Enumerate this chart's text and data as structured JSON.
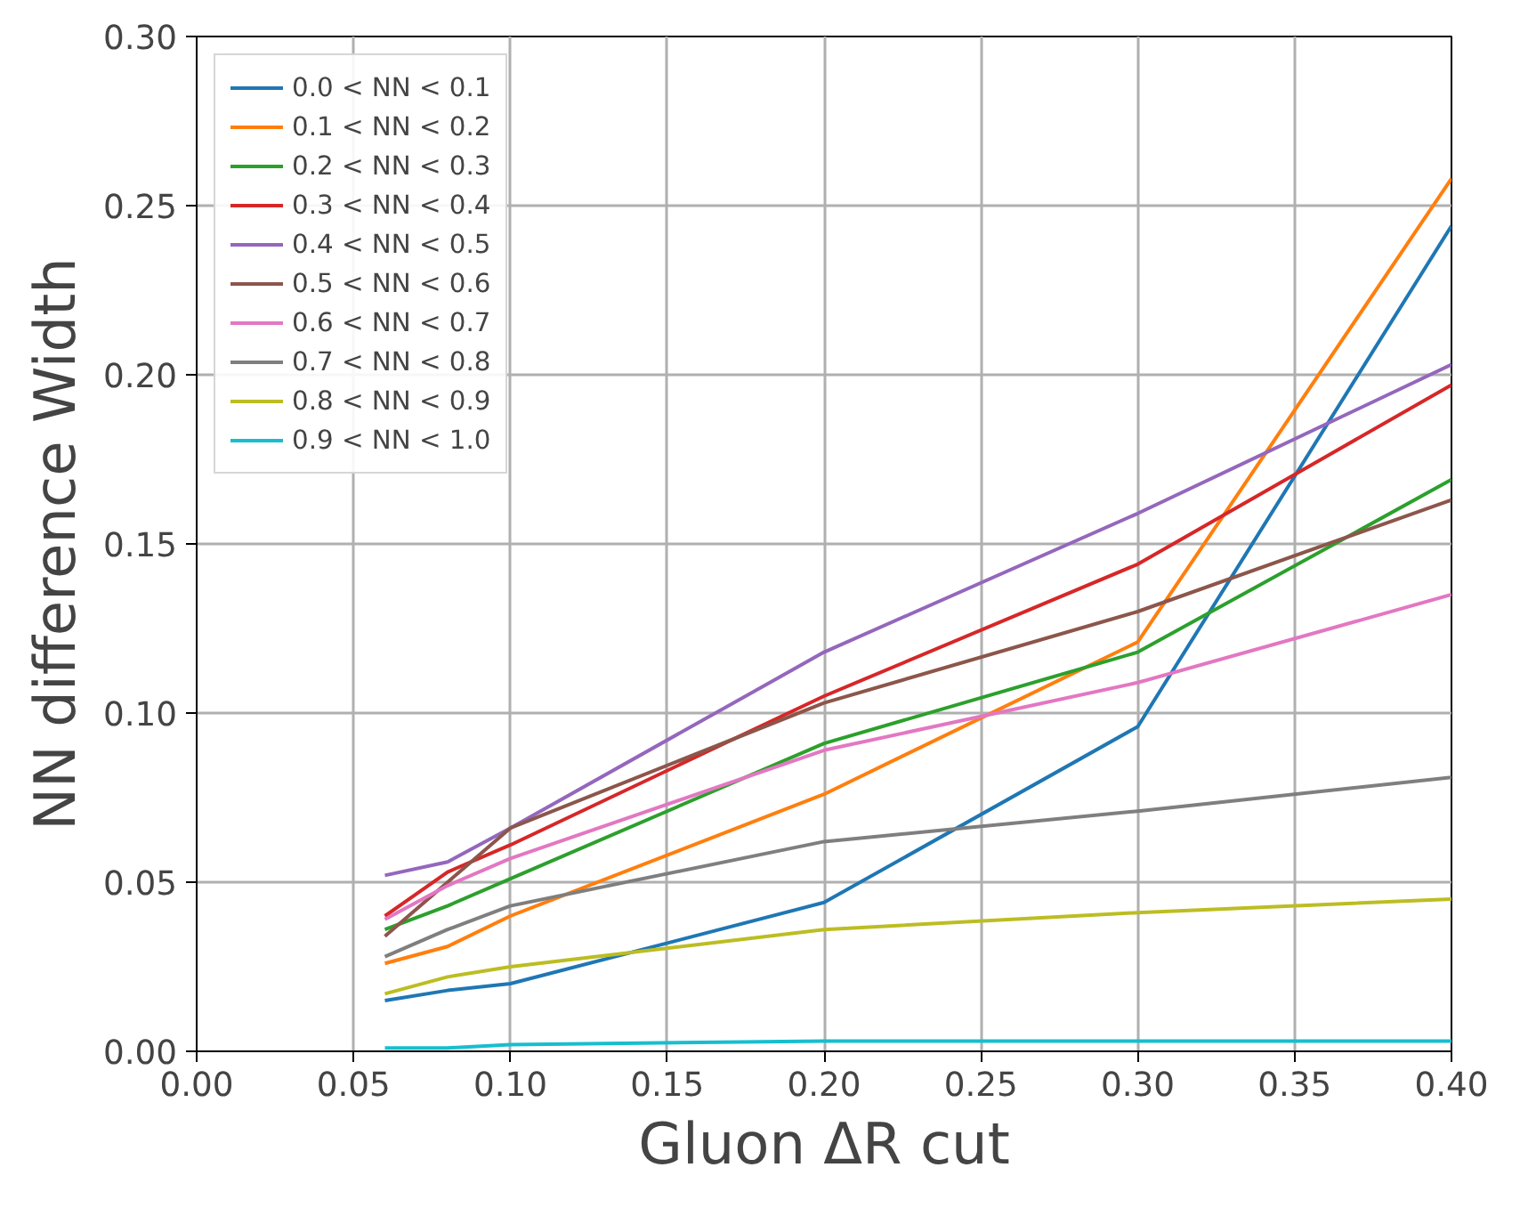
{
  "chart_data": {
    "type": "line",
    "xlabel": "Gluon ΔR cut",
    "ylabel": "NN difference Width",
    "x": [
      0.06,
      0.08,
      0.1,
      0.2,
      0.3,
      0.4
    ],
    "series": [
      {
        "name": "0.0 < NN < 0.1",
        "color": "#1f77b4",
        "values": [
          0.015,
          0.018,
          0.02,
          0.044,
          0.096,
          0.244
        ]
      },
      {
        "name": "0.1 < NN < 0.2",
        "color": "#ff7f0e",
        "values": [
          0.026,
          0.031,
          0.04,
          0.076,
          0.121,
          0.258
        ]
      },
      {
        "name": "0.2 < NN < 0.3",
        "color": "#2ca02c",
        "values": [
          0.036,
          0.043,
          0.051,
          0.091,
          0.118,
          0.169
        ]
      },
      {
        "name": "0.3 < NN < 0.4",
        "color": "#d62728",
        "values": [
          0.04,
          0.053,
          0.061,
          0.105,
          0.144,
          0.197
        ]
      },
      {
        "name": "0.4 < NN < 0.5",
        "color": "#9467bd",
        "values": [
          0.052,
          0.056,
          0.066,
          0.118,
          0.159,
          0.203
        ]
      },
      {
        "name": "0.5 < NN < 0.6",
        "color": "#8c564b",
        "values": [
          0.034,
          0.05,
          0.066,
          0.103,
          0.13,
          0.163
        ]
      },
      {
        "name": "0.6 < NN < 0.7",
        "color": "#e377c2",
        "values": [
          0.039,
          0.049,
          0.057,
          0.089,
          0.109,
          0.135
        ]
      },
      {
        "name": "0.7 < NN < 0.8",
        "color": "#7f7f7f",
        "values": [
          0.028,
          0.036,
          0.043,
          0.062,
          0.071,
          0.081
        ]
      },
      {
        "name": "0.8 < NN < 0.9",
        "color": "#bcbd22",
        "values": [
          0.017,
          0.022,
          0.025,
          0.036,
          0.041,
          0.045
        ]
      },
      {
        "name": "0.9 < NN < 1.0",
        "color": "#17becf",
        "values": [
          0.001,
          0.001,
          0.002,
          0.003,
          0.003,
          0.003
        ]
      }
    ],
    "xlim": [
      0.0,
      0.4
    ],
    "ylim": [
      0.0,
      0.3
    ],
    "xticks": [
      {
        "value": 0,
        "label": "0.00"
      },
      {
        "value": 0.05,
        "label": "0.05"
      },
      {
        "value": 0.1,
        "label": "0.10"
      },
      {
        "value": 0.15,
        "label": "0.15"
      },
      {
        "value": 0.2,
        "label": "0.20"
      },
      {
        "value": 0.25,
        "label": "0.25"
      },
      {
        "value": 0.3,
        "label": "0.30"
      },
      {
        "value": 0.35,
        "label": "0.35"
      },
      {
        "value": 0.4,
        "label": "0.40"
      }
    ],
    "yticks": [
      {
        "value": 0,
        "label": "0.00"
      },
      {
        "value": 0.05,
        "label": "0.05"
      },
      {
        "value": 0.1,
        "label": "0.10"
      },
      {
        "value": 0.15,
        "label": "0.15"
      },
      {
        "value": 0.2,
        "label": "0.20"
      },
      {
        "value": 0.25,
        "label": "0.25"
      },
      {
        "value": 0.3,
        "label": "0.30"
      }
    ],
    "grid": true,
    "legend": "top left",
    "line_style": "solid",
    "marker": "none"
  }
}
